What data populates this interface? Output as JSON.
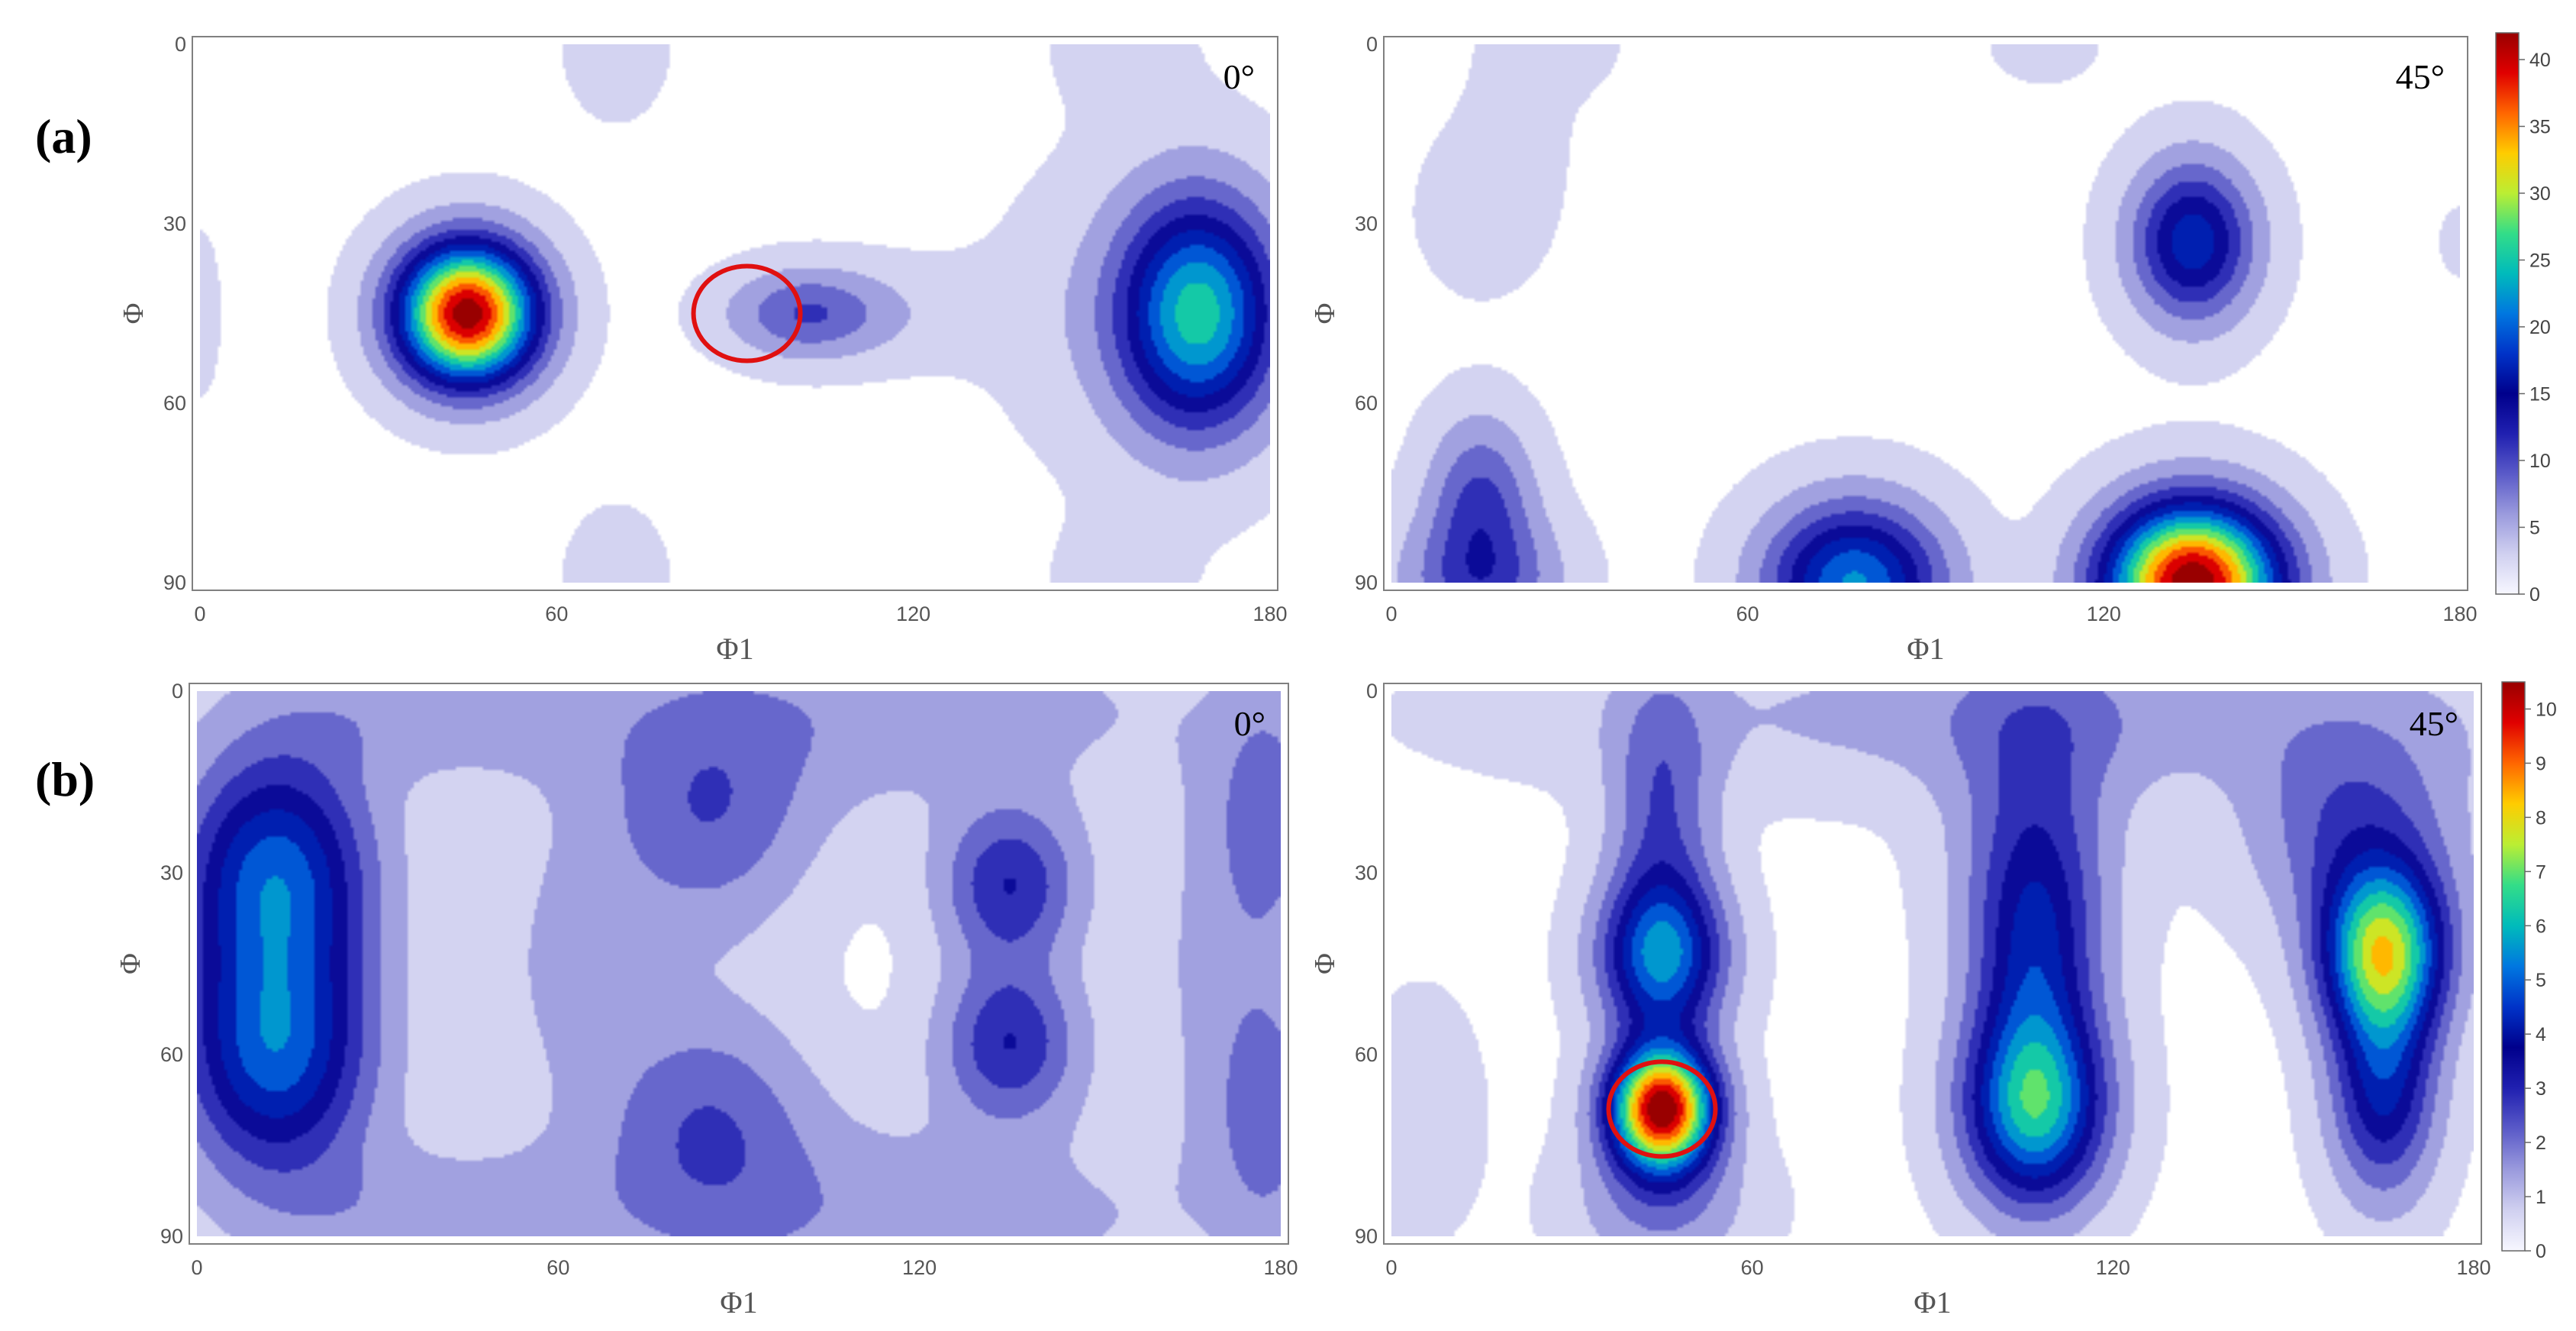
{
  "figure": {
    "row_labels": [
      "(a)",
      "(b)"
    ]
  },
  "colorscale": [
    "#f7f7ff",
    "#d0d0f0",
    "#9a9add",
    "#5a5ac8",
    "#2020b0",
    "#00008c",
    "#0033c8",
    "#0077e0",
    "#00bbbb",
    "#33dd88",
    "#bbee33",
    "#ffcc00",
    "#ff6600",
    "#e00000",
    "#990000"
  ],
  "chart_data": [
    {
      "type": "heatmap",
      "id": "a-0",
      "row": "a",
      "angle_label": "0°",
      "xlabel": "Φ1",
      "ylabel": "Φ",
      "xlim": [
        0,
        180
      ],
      "ylim": [
        90,
        0
      ],
      "xticks": [
        0,
        60,
        120,
        180
      ],
      "yticks": [
        0,
        30,
        60,
        90
      ],
      "vmax": 42,
      "peaks": [
        {
          "x": 45,
          "y": 45,
          "value": 41,
          "sx": 8,
          "sy": 8
        },
        {
          "x": 102,
          "y": 45,
          "value": 8,
          "sx": 9,
          "sy": 5
        },
        {
          "x": 118,
          "y": 45,
          "value": 1.5,
          "sx": 14,
          "sy": 6
        },
        {
          "x": 168,
          "y": 45,
          "value": 22,
          "sx": 9,
          "sy": 13
        },
        {
          "x": 160,
          "y": 45,
          "value": 2.5,
          "sx": 16,
          "sy": 17
        },
        {
          "x": 70,
          "y": 0,
          "value": 1.2,
          "sx": 7,
          "sy": 10
        },
        {
          "x": 70,
          "y": 90,
          "value": 1.2,
          "sx": 7,
          "sy": 10
        },
        {
          "x": 155,
          "y": 0,
          "value": 1.1,
          "sx": 9,
          "sy": 8
        },
        {
          "x": 155,
          "y": 90,
          "value": 1.1,
          "sx": 9,
          "sy": 8
        },
        {
          "x": 0,
          "y": 45,
          "value": 1.0,
          "sx": 3,
          "sy": 12
        }
      ],
      "highlight": {
        "x": 92,
        "y": 45
      }
    },
    {
      "type": "heatmap",
      "id": "a-45",
      "row": "a",
      "angle_label": "45°",
      "xlabel": "Φ1",
      "ylabel": "Φ",
      "xlim": [
        0,
        180
      ],
      "ylim": [
        90,
        0
      ],
      "xticks": [
        0,
        60,
        120,
        180
      ],
      "yticks": [
        0,
        30,
        60,
        90
      ],
      "vmax": 42,
      "colorbar": {
        "ticks": [
          0,
          5,
          10,
          15,
          20,
          25,
          30,
          35,
          40
        ]
      },
      "peaks": [
        {
          "x": 135,
          "y": 90,
          "value": 42,
          "sx": 10,
          "sy": 9
        },
        {
          "x": 78,
          "y": 90,
          "value": 20,
          "sx": 10,
          "sy": 9
        },
        {
          "x": 135,
          "y": 33,
          "value": 16,
          "sx": 7,
          "sy": 9
        },
        {
          "x": 15,
          "y": 75,
          "value": 8,
          "sx": 6,
          "sy": 9
        },
        {
          "x": 15,
          "y": 90,
          "value": 9,
          "sx": 9,
          "sy": 8
        },
        {
          "x": 15,
          "y": 28,
          "value": 1.8,
          "sx": 7,
          "sy": 9
        },
        {
          "x": 22,
          "y": 8,
          "value": 1.0,
          "sx": 7,
          "sy": 14
        },
        {
          "x": 30,
          "y": 0,
          "value": 1.2,
          "sx": 6,
          "sy": 5
        },
        {
          "x": 110,
          "y": 0,
          "value": 1.2,
          "sx": 7,
          "sy": 5
        },
        {
          "x": 180,
          "y": 33,
          "value": 1.0,
          "sx": 3,
          "sy": 5
        }
      ]
    },
    {
      "type": "heatmap",
      "id": "b-0",
      "row": "b",
      "angle_label": "0°",
      "xlabel": "Φ1",
      "ylabel": "Φ",
      "xlim": [
        0,
        180
      ],
      "ylim": [
        90,
        0
      ],
      "xticks": [
        0,
        60,
        120,
        180
      ],
      "yticks": [
        0,
        30,
        60,
        90
      ],
      "vmax": 10,
      "peaks": [
        {
          "x": 13,
          "y": 30,
          "value": 4.2,
          "sx": 11,
          "sy": 14
        },
        {
          "x": 13,
          "y": 60,
          "value": 4.2,
          "sx": 11,
          "sy": 14
        },
        {
          "x": 135,
          "y": 32,
          "value": 2.6,
          "sx": 8,
          "sy": 9
        },
        {
          "x": 135,
          "y": 58,
          "value": 2.6,
          "sx": 8,
          "sy": 9
        },
        {
          "x": 85,
          "y": 22,
          "value": 1.7,
          "sx": 12,
          "sy": 13
        },
        {
          "x": 85,
          "y": 70,
          "value": 1.7,
          "sx": 12,
          "sy": 13
        },
        {
          "x": 178,
          "y": 20,
          "value": 1.4,
          "sx": 6,
          "sy": 14
        },
        {
          "x": 178,
          "y": 70,
          "value": 1.4,
          "sx": 6,
          "sy": 14
        },
        {
          "x": 170,
          "y": 45,
          "value": 0.8,
          "sx": 10,
          "sy": 25
        },
        {
          "x": 110,
          "y": 3,
          "value": 1.1,
          "sx": 40,
          "sy": 12
        },
        {
          "x": 110,
          "y": 87,
          "value": 1.1,
          "sx": 40,
          "sy": 12
        },
        {
          "x": 35,
          "y": 3,
          "value": 0.9,
          "sx": 20,
          "sy": 8
        },
        {
          "x": 35,
          "y": 87,
          "value": 0.9,
          "sx": 20,
          "sy": 8
        },
        {
          "x": 62,
          "y": 45,
          "value": 0.8,
          "sx": 10,
          "sy": 18
        }
      ]
    },
    {
      "type": "heatmap",
      "id": "b-45",
      "row": "b",
      "angle_label": "45°",
      "xlabel": "Φ1",
      "ylabel": "Φ",
      "xlim": [
        0,
        180
      ],
      "ylim": [
        90,
        0
      ],
      "xticks": [
        0,
        60,
        120,
        180
      ],
      "yticks": [
        0,
        30,
        60,
        90
      ],
      "vmax": 10.5,
      "colorbar": {
        "ticks": [
          0,
          1,
          2,
          3,
          4,
          5,
          6,
          7,
          8,
          9,
          10
        ]
      },
      "peaks": [
        {
          "x": 45,
          "y": 69,
          "value": 10.3,
          "sx": 6,
          "sy": 7
        },
        {
          "x": 45,
          "y": 44,
          "value": 4.8,
          "sx": 7,
          "sy": 9
        },
        {
          "x": 45,
          "y": 20,
          "value": 2.0,
          "sx": 6,
          "sy": 16
        },
        {
          "x": 45,
          "y": 85,
          "value": 1.4,
          "sx": 10,
          "sy": 8
        },
        {
          "x": 107,
          "y": 69,
          "value": 5.5,
          "sx": 8,
          "sy": 11
        },
        {
          "x": 107,
          "y": 44,
          "value": 3.0,
          "sx": 7,
          "sy": 16
        },
        {
          "x": 107,
          "y": 20,
          "value": 1.5,
          "sx": 10,
          "sy": 20
        },
        {
          "x": 165,
          "y": 43,
          "value": 7.0,
          "sx": 7,
          "sy": 10
        },
        {
          "x": 165,
          "y": 66,
          "value": 3.5,
          "sx": 6,
          "sy": 12
        },
        {
          "x": 160,
          "y": 22,
          "value": 2.0,
          "sx": 12,
          "sy": 12
        },
        {
          "x": 110,
          "y": 4,
          "value": 1.0,
          "sx": 55,
          "sy": 9
        },
        {
          "x": 5,
          "y": 70,
          "value": 0.7,
          "sx": 6,
          "sy": 12
        }
      ],
      "highlight": {
        "x": 45,
        "y": 69
      }
    }
  ]
}
